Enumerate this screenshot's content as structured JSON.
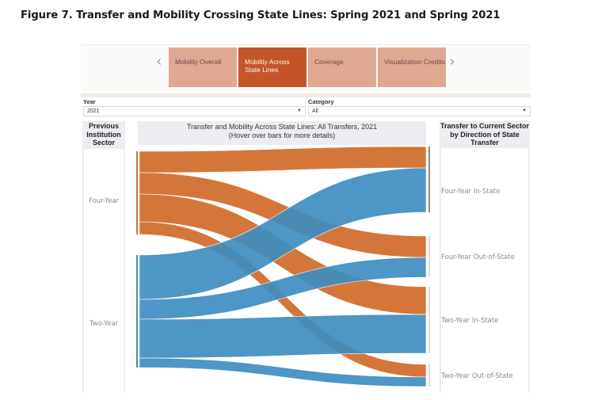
{
  "figure_title": "Figure 7. Transfer and Mobility Crossing State Lines: Spring 2021 and Spring 2021",
  "nav": {
    "prev_icon": "chevron-left-icon",
    "next_icon": "chevron-right-icon",
    "tabs": [
      {
        "label": "Mobility Overall",
        "active": false
      },
      {
        "label": "Mobility Across State Lines",
        "active": true
      },
      {
        "label": "Coverage",
        "active": false
      },
      {
        "label": "Visualization Credits",
        "active": false
      }
    ]
  },
  "filters": {
    "year": {
      "label": "Year",
      "value": "2021"
    },
    "category": {
      "label": "Category",
      "value": "All"
    }
  },
  "left_column": {
    "header": "Previous Institution Sector",
    "nodes": [
      "Four-Year",
      "Two-Year"
    ]
  },
  "center": {
    "title_line1": "Transfer and Mobility Across State Lines: All Transfers, 2021",
    "title_line2": "(Hover over bars for more details)"
  },
  "right_column": {
    "header": "Transfer to Current Sector by Direction of State Transfer",
    "nodes": [
      "Four-Year In-State",
      "Four-Year Out-of-State",
      "Two-Year In-State",
      "Two-Year Out-of-State"
    ]
  },
  "colors": {
    "four_year": "#d4763a",
    "two_year": "#3e8dc0",
    "active_tab": "#c4552a",
    "inactive_tab": "#e0a891"
  },
  "chart_data": {
    "type": "sankey",
    "title": "Transfer and Mobility Across State Lines: All Transfers, 2021",
    "sources": [
      "Four-Year",
      "Two-Year"
    ],
    "targets": [
      "Four-Year In-State",
      "Four-Year Out-of-State",
      "Two-Year In-State",
      "Two-Year Out-of-State"
    ],
    "note": "Relative flow magnitudes estimated from band widths (arbitrary units)",
    "flows": [
      {
        "source": "Four-Year",
        "target": "Four-Year In-State",
        "value": 27
      },
      {
        "source": "Four-Year",
        "target": "Four-Year Out-of-State",
        "value": 27
      },
      {
        "source": "Four-Year",
        "target": "Two-Year In-State",
        "value": 35
      },
      {
        "source": "Four-Year",
        "target": "Two-Year Out-of-State",
        "value": 16
      },
      {
        "source": "Two-Year",
        "target": "Four-Year In-State",
        "value": 56
      },
      {
        "source": "Two-Year",
        "target": "Four-Year Out-of-State",
        "value": 25
      },
      {
        "source": "Two-Year",
        "target": "Two-Year In-State",
        "value": 49
      },
      {
        "source": "Two-Year",
        "target": "Two-Year Out-of-State",
        "value": 12
      }
    ]
  }
}
